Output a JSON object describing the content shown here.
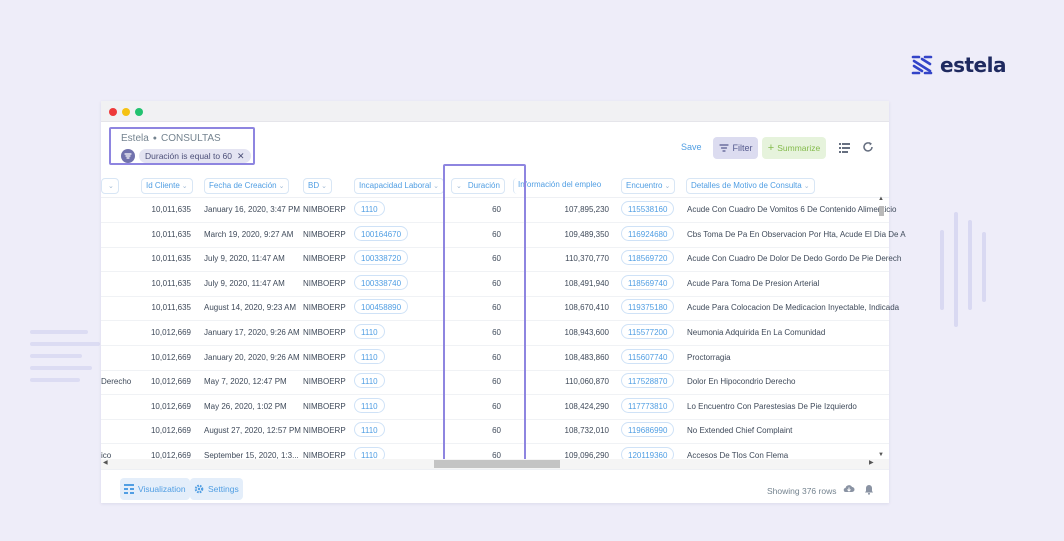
{
  "brand": {
    "name": "estela",
    "color": "#1f2a60"
  },
  "window": {
    "breadcrumb": {
      "parent": "Estela",
      "current": "CONSULTAS"
    },
    "active_filter": "Duración is equal to 60",
    "toolbar": {
      "save": "Save",
      "filter": "Filter",
      "summarize": "Summarize"
    }
  },
  "table": {
    "columns": [
      {
        "key": "prev",
        "label": ""
      },
      {
        "key": "id_cliente",
        "label": "Id Cliente"
      },
      {
        "key": "fecha",
        "label": "Fecha de Creación"
      },
      {
        "key": "bd",
        "label": "BD"
      },
      {
        "key": "incapacidad",
        "label": "Incapacidad Laboral"
      },
      {
        "key": "duracion",
        "label": "Duración"
      },
      {
        "key": "info_empleo",
        "label": "Información del empleo"
      },
      {
        "key": "encuentro",
        "label": "Encuentro"
      },
      {
        "key": "detalles",
        "label": "Detalles de Motivo de Consulta"
      }
    ],
    "rows": [
      {
        "prev": "",
        "id_cliente": "10,011,635",
        "fecha": "January 16, 2020, 3:47 PM",
        "bd": "NIMBOERP",
        "incapacidad": "1110",
        "duracion": "60",
        "info_empleo": "107,895,230",
        "encuentro": "115538160",
        "detalles": "Acude Con Cuadro De Vomitos 6 De Contenido Alimenticio"
      },
      {
        "prev": "",
        "id_cliente": "10,011,635",
        "fecha": "March 19, 2020, 9:27 AM",
        "bd": "NIMBOERP",
        "incapacidad": "100164670",
        "duracion": "60",
        "info_empleo": "109,489,350",
        "encuentro": "116924680",
        "detalles": "Cbs Toma De Pa En Observacion Por Hta, Acude El Dia De A"
      },
      {
        "prev": "",
        "id_cliente": "10,011,635",
        "fecha": "July 9, 2020, 11:47 AM",
        "bd": "NIMBOERP",
        "incapacidad": "100338720",
        "duracion": "60",
        "info_empleo": "110,370,770",
        "encuentro": "118569720",
        "detalles": "Acude Con Cuadro De Dolor De Dedo Gordo De Pie Derech"
      },
      {
        "prev": "",
        "id_cliente": "10,011,635",
        "fecha": "July 9, 2020, 11:47 AM",
        "bd": "NIMBOERP",
        "incapacidad": "100338740",
        "duracion": "60",
        "info_empleo": "108,491,940",
        "encuentro": "118569740",
        "detalles": "Acude Para Toma De Presion Arterial"
      },
      {
        "prev": "",
        "id_cliente": "10,011,635",
        "fecha": "August 14, 2020, 9:23 AM",
        "bd": "NIMBOERP",
        "incapacidad": "100458890",
        "duracion": "60",
        "info_empleo": "108,670,410",
        "encuentro": "119375180",
        "detalles": "Acude Para Colocacion De Medicacion Inyectable, Indicada"
      },
      {
        "prev": "",
        "id_cliente": "10,012,669",
        "fecha": "January 17, 2020, 9:26 AM",
        "bd": "NIMBOERP",
        "incapacidad": "1110",
        "duracion": "60",
        "info_empleo": "108,943,600",
        "encuentro": "115577200",
        "detalles": "Neumonia Adquirida En La Comunidad"
      },
      {
        "prev": "",
        "id_cliente": "10,012,669",
        "fecha": "January 20, 2020, 9:26 AM",
        "bd": "NIMBOERP",
        "incapacidad": "1110",
        "duracion": "60",
        "info_empleo": "108,483,860",
        "encuentro": "115607740",
        "detalles": "Proctorragia"
      },
      {
        "prev": "Derecho",
        "id_cliente": "10,012,669",
        "fecha": "May 7, 2020, 12:47 PM",
        "bd": "NIMBOERP",
        "incapacidad": "1110",
        "duracion": "60",
        "info_empleo": "110,060,870",
        "encuentro": "117528870",
        "detalles": "Dolor En Hipocondrio Derecho"
      },
      {
        "prev": "",
        "id_cliente": "10,012,669",
        "fecha": "May 26, 2020, 1:02 PM",
        "bd": "NIMBOERP",
        "incapacidad": "1110",
        "duracion": "60",
        "info_empleo": "108,424,290",
        "encuentro": "117773810",
        "detalles": "Lo Encuentro Con Parestesias De Pie Izquierdo"
      },
      {
        "prev": "",
        "id_cliente": "10,012,669",
        "fecha": "August 27, 2020, 12:57 PM",
        "bd": "NIMBOERP",
        "incapacidad": "1110",
        "duracion": "60",
        "info_empleo": "108,732,010",
        "encuentro": "119686990",
        "detalles": "No Extended Chief Complaint"
      },
      {
        "prev": "ico",
        "id_cliente": "10,012,669",
        "fecha": "September 15, 2020, 1:3...",
        "bd": "NIMBOERP",
        "incapacidad": "1110",
        "duracion": "60",
        "info_empleo": "109,096,290",
        "encuentro": "120119360",
        "detalles": "Accesos De Tlos Con Flema"
      }
    ]
  },
  "footer": {
    "visualization": "Visualization",
    "settings": "Settings",
    "row_count": "Showing 376 rows"
  },
  "colors": {
    "background": "#eeedf9",
    "accent": "#509ee3",
    "highlight": "#8e85e0",
    "summarize": "#84bb4c"
  }
}
